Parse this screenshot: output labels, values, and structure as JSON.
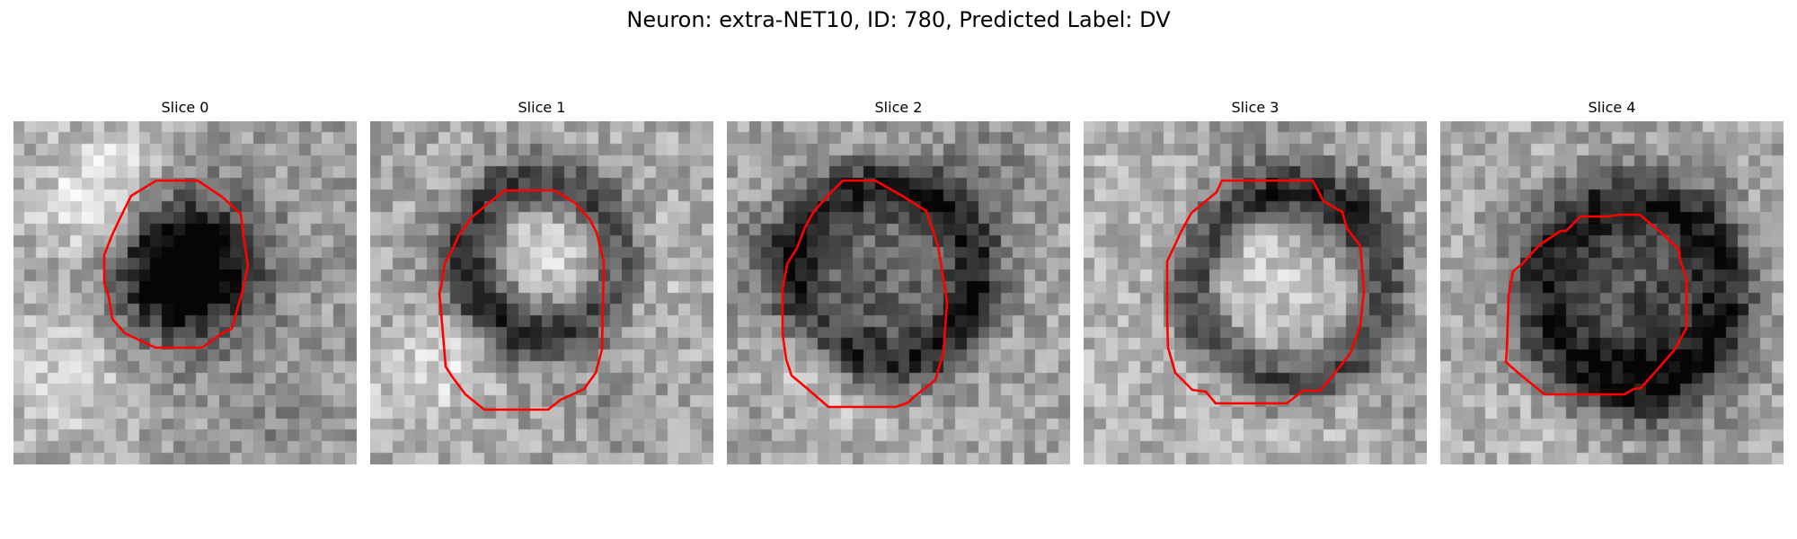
{
  "figure": {
    "title": "Neuron: extra-NET10, ID: 780, Predicted Label: DV"
  },
  "panels": [
    {
      "title": "Slice 0",
      "image": "grayscale-microscopy-slice",
      "contour_color": "#ff0000",
      "description_cells": "dark-center"
    },
    {
      "title": "Slice 1",
      "image": "grayscale-microscopy-slice",
      "contour_color": "#ff0000",
      "description_cells": "dark-ring-bright-center"
    },
    {
      "title": "Slice 2",
      "image": "grayscale-microscopy-slice",
      "contour_color": "#ff0000",
      "description_cells": "dark-ring-gray-center"
    },
    {
      "title": "Slice 3",
      "image": "grayscale-microscopy-slice",
      "contour_color": "#ff0000",
      "description_cells": "dark-ring-light-center"
    },
    {
      "title": "Slice 4",
      "image": "grayscale-microscopy-slice",
      "contour_color": "#ff0000",
      "description_cells": "dark-ring-gray-center"
    }
  ]
}
